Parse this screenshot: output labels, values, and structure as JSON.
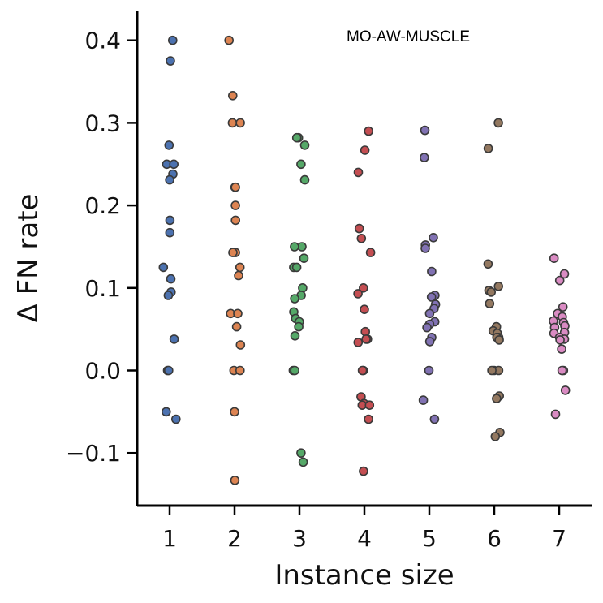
{
  "chart_data": {
    "type": "scatter",
    "title": "",
    "annotation": "MO-AW-MUSCLE",
    "xlabel": "Instance size",
    "ylabel": "Δ FN rate",
    "x_ticks": [
      "1",
      "2",
      "3",
      "4",
      "5",
      "6",
      "7"
    ],
    "y_ticks": [
      "−0.1",
      "0.0",
      "0.1",
      "0.2",
      "0.3",
      "0.4"
    ],
    "ylim": [
      -0.165,
      0.435
    ],
    "grid": false,
    "series": [
      {
        "x": 1,
        "color": "#4c72b0",
        "values": [
          0.4,
          0.375,
          0.273,
          0.25,
          0.25,
          0.238,
          0.231,
          0.182,
          0.167,
          0.125,
          0.111,
          0.095,
          0.091,
          0.038,
          0.0,
          0.0,
          -0.05,
          -0.059
        ]
      },
      {
        "x": 2,
        "color": "#dd8452",
        "values": [
          0.4,
          0.333,
          0.3,
          0.3,
          0.222,
          0.222,
          0.2,
          0.182,
          0.143,
          0.143,
          0.125,
          0.115,
          0.069,
          0.069,
          0.053,
          0.031,
          0.0,
          0.0,
          -0.05,
          -0.133
        ]
      },
      {
        "x": 3,
        "color": "#55a868",
        "values": [
          0.282,
          0.282,
          0.273,
          0.25,
          0.231,
          0.15,
          0.15,
          0.136,
          0.125,
          0.125,
          0.1,
          0.091,
          0.087,
          0.071,
          0.063,
          0.059,
          0.053,
          0.042,
          0.0,
          0.0,
          -0.1,
          -0.111
        ]
      },
      {
        "x": 4,
        "color": "#c44e52",
        "values": [
          0.29,
          0.267,
          0.24,
          0.172,
          0.16,
          0.143,
          0.1,
          0.093,
          0.074,
          0.047,
          0.038,
          0.038,
          0.034,
          0.0,
          0.0,
          -0.032,
          -0.04,
          -0.042,
          -0.042,
          -0.059,
          -0.122
        ]
      },
      {
        "x": 5,
        "color": "#8172b3",
        "values": [
          0.291,
          0.258,
          0.161,
          0.152,
          0.148,
          0.12,
          0.091,
          0.089,
          0.08,
          0.075,
          0.069,
          0.059,
          0.056,
          0.052,
          0.04,
          0.035,
          0.0,
          -0.036,
          -0.059
        ]
      },
      {
        "x": 6,
        "color": "#937860",
        "values": [
          0.3,
          0.269,
          0.129,
          0.102,
          0.097,
          0.095,
          0.081,
          0.053,
          0.048,
          0.045,
          0.04,
          0.04,
          0.037,
          0.0,
          0.0,
          0.0,
          -0.031,
          -0.034,
          -0.075,
          -0.08
        ]
      },
      {
        "x": 7,
        "color": "#da8bc3",
        "values": [
          0.136,
          0.117,
          0.109,
          0.077,
          0.069,
          0.065,
          0.06,
          0.058,
          0.054,
          0.052,
          0.046,
          0.045,
          0.04,
          0.038,
          0.037,
          0.026,
          0.0,
          0.0,
          -0.024,
          -0.053
        ]
      }
    ]
  }
}
